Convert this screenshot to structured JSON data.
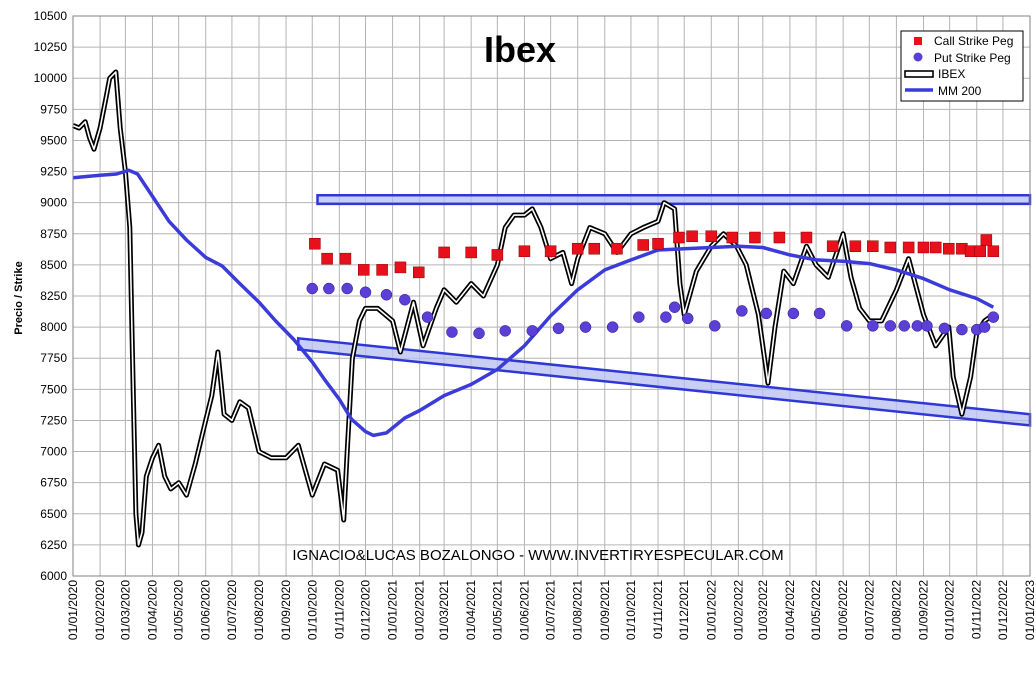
{
  "chart_data": {
    "type": "line",
    "title": "Ibex",
    "xlabel": "",
    "ylabel": "Precio / Strike",
    "ylim": [
      6000,
      10500
    ],
    "yticks": [
      6000,
      6250,
      6500,
      6750,
      7000,
      7250,
      7500,
      7750,
      8000,
      8250,
      8500,
      8750,
      9000,
      9250,
      9500,
      9750,
      10000,
      10250,
      10500
    ],
    "xlim": [
      "2020-01-01",
      "2023-01-01"
    ],
    "xticks": [
      "01/01/2020",
      "01/02/2020",
      "01/03/2020",
      "01/04/2020",
      "01/05/2020",
      "01/06/2020",
      "01/07/2020",
      "01/08/2020",
      "01/09/2020",
      "01/10/2020",
      "01/11/2020",
      "01/12/2020",
      "01/01/2021",
      "01/02/2021",
      "01/03/2021",
      "01/04/2021",
      "01/05/2021",
      "01/06/2021",
      "01/07/2021",
      "01/08/2021",
      "01/09/2021",
      "01/10/2021",
      "01/11/2021",
      "01/12/2021",
      "01/01/2022",
      "01/02/2022",
      "01/03/2022",
      "01/04/2022",
      "01/05/2022",
      "01/06/2022",
      "01/07/2022",
      "01/08/2022",
      "01/09/2022",
      "01/10/2022",
      "01/11/2022",
      "01/12/2022",
      "01/01/2023"
    ],
    "grid": true,
    "legend_position": "top-right",
    "annotation": "IGNACIO&LUCAS BOZALONGO - WWW.INVERTIRYESPECULAR.COM",
    "colors": {
      "call": "#e8101a",
      "put": "#5b3fd6",
      "ibex": "#000000",
      "mm200": "#3b3bd9",
      "band_fill": "#b7bdf0",
      "band_stroke": "#2f38d6",
      "grid": "#b4b4b4"
    },
    "series": [
      {
        "name": "Call Strike Peg",
        "kind": "marker-square",
        "x": [
          "2020-10-04",
          "2020-10-18",
          "2020-11-08",
          "2020-11-29",
          "2020-12-20",
          "2021-01-10",
          "2021-01-31",
          "2021-03-01",
          "2021-04-01",
          "2021-05-01",
          "2021-06-01",
          "2021-07-01",
          "2021-08-01",
          "2021-08-20",
          "2021-09-15",
          "2021-10-15",
          "2021-11-01",
          "2021-11-25",
          "2021-12-10",
          "2022-01-01",
          "2022-01-25",
          "2022-02-20",
          "2022-03-20",
          "2022-04-20",
          "2022-05-20",
          "2022-06-15",
          "2022-07-05",
          "2022-07-25",
          "2022-08-15",
          "2022-09-01",
          "2022-09-15",
          "2022-09-30",
          "2022-10-15",
          "2022-10-25",
          "2022-11-05",
          "2022-11-12",
          "2022-11-20"
        ],
        "values": [
          8670,
          8550,
          8550,
          8460,
          8460,
          8480,
          8440,
          8600,
          8600,
          8580,
          8610,
          8610,
          8630,
          8630,
          8630,
          8660,
          8670,
          8720,
          8730,
          8730,
          8720,
          8720,
          8720,
          8720,
          8650,
          8650,
          8650,
          8640,
          8640,
          8640,
          8640,
          8630,
          8630,
          8610,
          8610,
          8700,
          8610
        ]
      },
      {
        "name": "Put Strike Peg",
        "kind": "marker-circle",
        "x": [
          "2020-10-01",
          "2020-10-20",
          "2020-11-10",
          "2020-12-01",
          "2020-12-25",
          "2021-01-15",
          "2021-02-10",
          "2021-03-10",
          "2021-04-10",
          "2021-05-10",
          "2021-06-10",
          "2021-07-10",
          "2021-08-10",
          "2021-09-10",
          "2021-10-10",
          "2021-11-10",
          "2021-11-20",
          "2021-12-05",
          "2022-01-05",
          "2022-02-05",
          "2022-03-05",
          "2022-04-05",
          "2022-05-05",
          "2022-06-05",
          "2022-07-05",
          "2022-07-25",
          "2022-08-10",
          "2022-08-25",
          "2022-09-05",
          "2022-09-25",
          "2022-10-15",
          "2022-11-01",
          "2022-11-10",
          "2022-11-20"
        ],
        "values": [
          8310,
          8310,
          8310,
          8280,
          8260,
          8220,
          8080,
          7960,
          7950,
          7970,
          7970,
          7990,
          8000,
          8000,
          8080,
          8080,
          8160,
          8070,
          8010,
          8130,
          8110,
          8110,
          8110,
          8010,
          8010,
          8010,
          8010,
          8010,
          8010,
          7990,
          7980,
          7980,
          8000,
          8080
        ]
      },
      {
        "name": "IBEX",
        "kind": "line-double",
        "x": [
          "2020-01-01",
          "2020-01-08",
          "2020-01-15",
          "2020-01-20",
          "2020-01-25",
          "2020-02-01",
          "2020-02-08",
          "2020-02-12",
          "2020-02-19",
          "2020-02-24",
          "2020-03-01",
          "2020-03-06",
          "2020-03-10",
          "2020-03-13",
          "2020-03-16",
          "2020-03-20",
          "2020-03-25",
          "2020-04-01",
          "2020-04-08",
          "2020-04-15",
          "2020-04-22",
          "2020-05-01",
          "2020-05-10",
          "2020-05-20",
          "2020-06-01",
          "2020-06-08",
          "2020-06-15",
          "2020-06-22",
          "2020-07-01",
          "2020-07-10",
          "2020-07-20",
          "2020-08-01",
          "2020-08-15",
          "2020-09-01",
          "2020-09-15",
          "2020-10-01",
          "2020-10-15",
          "2020-10-30",
          "2020-11-06",
          "2020-11-10",
          "2020-11-16",
          "2020-11-24",
          "2020-12-01",
          "2020-12-15",
          "2021-01-01",
          "2021-01-10",
          "2021-01-25",
          "2021-02-05",
          "2021-02-20",
          "2021-03-01",
          "2021-03-15",
          "2021-04-01",
          "2021-04-15",
          "2021-05-01",
          "2021-05-10",
          "2021-05-20",
          "2021-06-01",
          "2021-06-10",
          "2021-06-20",
          "2021-07-01",
          "2021-07-15",
          "2021-07-25",
          "2021-08-01",
          "2021-08-15",
          "2021-09-01",
          "2021-09-15",
          "2021-10-01",
          "2021-10-15",
          "2021-11-01",
          "2021-11-08",
          "2021-11-20",
          "2021-11-26",
          "2021-12-01",
          "2021-12-15",
          "2022-01-01",
          "2022-01-15",
          "2022-01-30",
          "2022-02-10",
          "2022-02-24",
          "2022-03-07",
          "2022-03-15",
          "2022-03-25",
          "2022-04-05",
          "2022-04-20",
          "2022-05-01",
          "2022-05-15",
          "2022-06-01",
          "2022-06-10",
          "2022-06-20",
          "2022-07-01",
          "2022-07-15",
          "2022-08-01",
          "2022-08-15",
          "2022-09-01",
          "2022-09-15",
          "2022-09-30",
          "2022-10-05",
          "2022-10-15",
          "2022-10-25",
          "2022-11-01",
          "2022-11-10",
          "2022-11-20"
        ],
        "values": [
          9620,
          9600,
          9650,
          9520,
          9430,
          9600,
          9850,
          10000,
          10050,
          9600,
          9250,
          8800,
          7500,
          6500,
          6250,
          6350,
          6800,
          6950,
          7050,
          6800,
          6700,
          6750,
          6650,
          6900,
          7250,
          7450,
          7800,
          7300,
          7250,
          7400,
          7350,
          7000,
          6950,
          6950,
          7050,
          6650,
          6900,
          6850,
          6450,
          7000,
          7750,
          8050,
          8150,
          8150,
          8050,
          7800,
          8200,
          7850,
          8150,
          8300,
          8200,
          8350,
          8250,
          8500,
          8800,
          8900,
          8900,
          8950,
          8800,
          8550,
          8600,
          8350,
          8550,
          8800,
          8750,
          8600,
          8750,
          8800,
          8850,
          9000,
          8950,
          8350,
          8100,
          8450,
          8650,
          8750,
          8650,
          8500,
          8100,
          7550,
          8000,
          8450,
          8350,
          8650,
          8500,
          8400,
          8750,
          8400,
          8150,
          8050,
          8050,
          8300,
          8550,
          8100,
          7850,
          8000,
          7600,
          7300,
          7600,
          7950,
          8050,
          8100
        ]
      },
      {
        "name": "MM 200",
        "kind": "line",
        "x": [
          "2020-01-01",
          "2020-02-01",
          "2020-02-20",
          "2020-03-05",
          "2020-03-15",
          "2020-04-01",
          "2020-04-20",
          "2020-05-10",
          "2020-06-01",
          "2020-06-20",
          "2020-07-10",
          "2020-08-01",
          "2020-08-20",
          "2020-09-10",
          "2020-10-01",
          "2020-10-15",
          "2020-11-01",
          "2020-11-15",
          "2020-12-01",
          "2020-12-10",
          "2020-12-25",
          "2021-01-15",
          "2021-02-01",
          "2021-03-01",
          "2021-04-01",
          "2021-05-01",
          "2021-06-01",
          "2021-07-01",
          "2021-08-01",
          "2021-09-01",
          "2021-10-01",
          "2021-11-01",
          "2021-12-01",
          "2022-01-01",
          "2022-02-01",
          "2022-03-01",
          "2022-04-01",
          "2022-05-01",
          "2022-06-01",
          "2022-07-01",
          "2022-08-01",
          "2022-09-01",
          "2022-10-01",
          "2022-11-01",
          "2022-11-20"
        ],
        "values": [
          9200,
          9220,
          9230,
          9260,
          9230,
          9050,
          8850,
          8700,
          8560,
          8490,
          8350,
          8200,
          8050,
          7900,
          7720,
          7580,
          7420,
          7260,
          7160,
          7130,
          7150,
          7270,
          7330,
          7450,
          7540,
          7660,
          7850,
          8090,
          8300,
          8460,
          8540,
          8620,
          8630,
          8640,
          8650,
          8640,
          8580,
          8540,
          8530,
          8510,
          8460,
          8390,
          8300,
          8230,
          8160
        ]
      }
    ],
    "bands": [
      {
        "name": "resistance-band",
        "x": [
          "2020-10-07",
          "2023-01-01"
        ],
        "y_top": [
          9060,
          9060
        ],
        "y_bottom": [
          8990,
          8990
        ]
      },
      {
        "name": "support-band",
        "x": [
          "2020-09-15",
          "2023-01-01"
        ],
        "y_top": [
          7910,
          7300
        ],
        "y_bottom": [
          7820,
          7210
        ]
      }
    ]
  }
}
